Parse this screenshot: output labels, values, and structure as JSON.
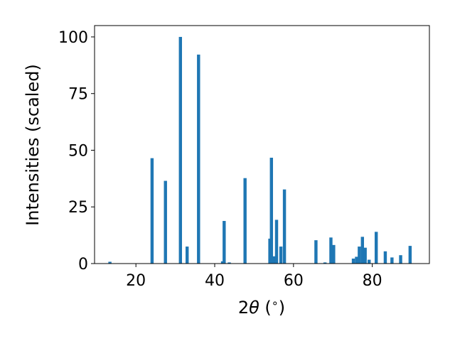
{
  "chart_data": {
    "type": "bar",
    "xlabel_prefix": "2",
    "xlabel_theta": "θ",
    "xlabel_unit_open": " (",
    "xlabel_unit": "∘",
    "xlabel_unit_close": ")",
    "ylabel": "Intensities (scaled)",
    "xlim": [
      9.5,
      94.5
    ],
    "ylim": [
      0,
      105
    ],
    "xticks": [
      20,
      40,
      60,
      80
    ],
    "yticks": [
      0,
      25,
      50,
      75,
      100
    ],
    "grid": false,
    "bar_color": "#1f77b4",
    "bar_width": 0.8,
    "x": [
      13.4,
      24.1,
      27.5,
      31.3,
      33.0,
      35.9,
      42.0,
      42.4,
      43.7,
      47.7,
      54.0,
      54.4,
      55.0,
      55.7,
      56.8,
      57.7,
      65.7,
      68.0,
      69.5,
      70.2,
      75.2,
      76.0,
      76.7,
      77.5,
      78.2,
      79.2,
      81.0,
      83.3,
      85.0,
      87.2,
      89.6
    ],
    "values": [
      0.8,
      46.5,
      36.5,
      100,
      7.5,
      92.2,
      1.0,
      18.8,
      0.5,
      37.7,
      11.0,
      46.7,
      3.2,
      19.3,
      7.5,
      32.7,
      10.3,
      0.5,
      11.5,
      8.2,
      2.2,
      3.0,
      7.5,
      11.8,
      7.0,
      1.7,
      14.0,
      5.4,
      2.7,
      3.7,
      7.8
    ]
  }
}
